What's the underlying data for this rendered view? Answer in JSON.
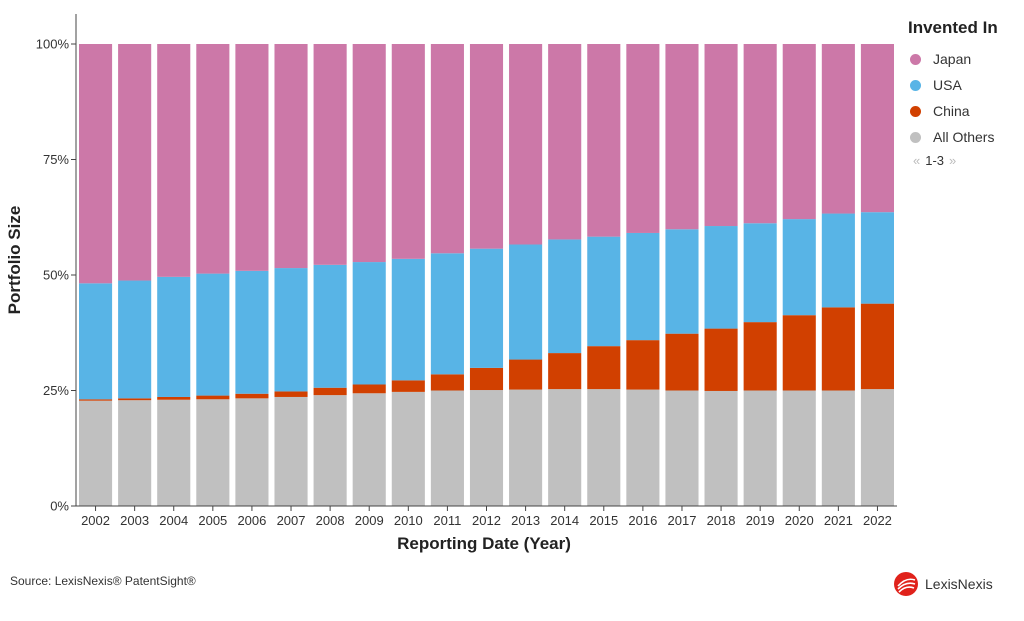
{
  "chart_data": {
    "type": "bar",
    "stacked": true,
    "normalized": true,
    "xlabel": "Reporting Date (Year)",
    "ylabel": "Portfolio Size",
    "ylim": [
      0,
      100
    ],
    "yticks": [
      "0%",
      "25%",
      "50%",
      "75%",
      "100%"
    ],
    "categories": [
      "2002",
      "2003",
      "2004",
      "2005",
      "2006",
      "2007",
      "2008",
      "2009",
      "2010",
      "2011",
      "2012",
      "2013",
      "2014",
      "2015",
      "2016",
      "2017",
      "2018",
      "2019",
      "2020",
      "2021",
      "2022"
    ],
    "series": [
      {
        "name": "All Others",
        "color": "#c0c0c0",
        "values": [
          22.8,
          22.9,
          23.0,
          23.1,
          23.3,
          23.6,
          24.0,
          24.4,
          24.7,
          25.0,
          25.1,
          25.2,
          25.3,
          25.3,
          25.2,
          25.0,
          24.9,
          25.0,
          25.0,
          25.0,
          25.3
        ]
      },
      {
        "name": "China",
        "color": "#d14000",
        "values": [
          0.3,
          0.4,
          0.6,
          0.8,
          1.0,
          1.2,
          1.6,
          1.9,
          2.5,
          3.5,
          4.8,
          6.5,
          7.8,
          9.3,
          10.7,
          12.3,
          13.5,
          14.8,
          16.3,
          18.0,
          18.5
        ]
      },
      {
        "name": "USA",
        "color": "#58b4e6",
        "values": [
          25.1,
          25.5,
          26.0,
          26.4,
          26.6,
          26.7,
          26.6,
          26.5,
          26.3,
          26.2,
          25.8,
          24.9,
          24.6,
          23.7,
          23.2,
          22.6,
          22.2,
          21.4,
          20.8,
          20.3,
          19.8
        ]
      },
      {
        "name": "Japan",
        "color": "#cc78a8",
        "values": [
          51.8,
          51.2,
          50.4,
          49.7,
          49.1,
          48.5,
          47.8,
          47.2,
          46.5,
          45.3,
          44.3,
          43.4,
          42.3,
          41.7,
          40.9,
          40.1,
          39.4,
          38.8,
          37.9,
          36.7,
          36.4
        ]
      }
    ],
    "legend": {
      "title": "Invented In",
      "placement": "top-right",
      "order": [
        "Japan",
        "USA",
        "China",
        "All Others"
      ],
      "pager": "1-3"
    }
  },
  "legend_pager": {
    "prev_icon": "«",
    "next_icon": "»"
  },
  "footer": {
    "source": "Source: LexisNexis® PatentSight®",
    "logo_text": "LexisNexis",
    "logo_icon": "lexisnexis-logo-icon"
  }
}
